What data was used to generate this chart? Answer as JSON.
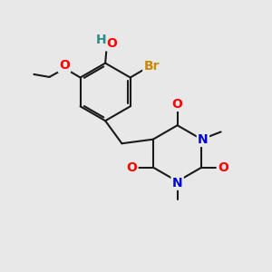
{
  "bg_color": "#e8e8e8",
  "bond_color": "#1a1a1a",
  "bond_width": 1.5,
  "colors": {
    "O": "#ff0000",
    "N": "#0000cd",
    "Br": "#cc8800",
    "H_of_OH": "#2e8b8b",
    "C": "#1a1a1a"
  },
  "font_size": 10,
  "dpi": 100,
  "figsize": [
    3.0,
    3.0
  ]
}
